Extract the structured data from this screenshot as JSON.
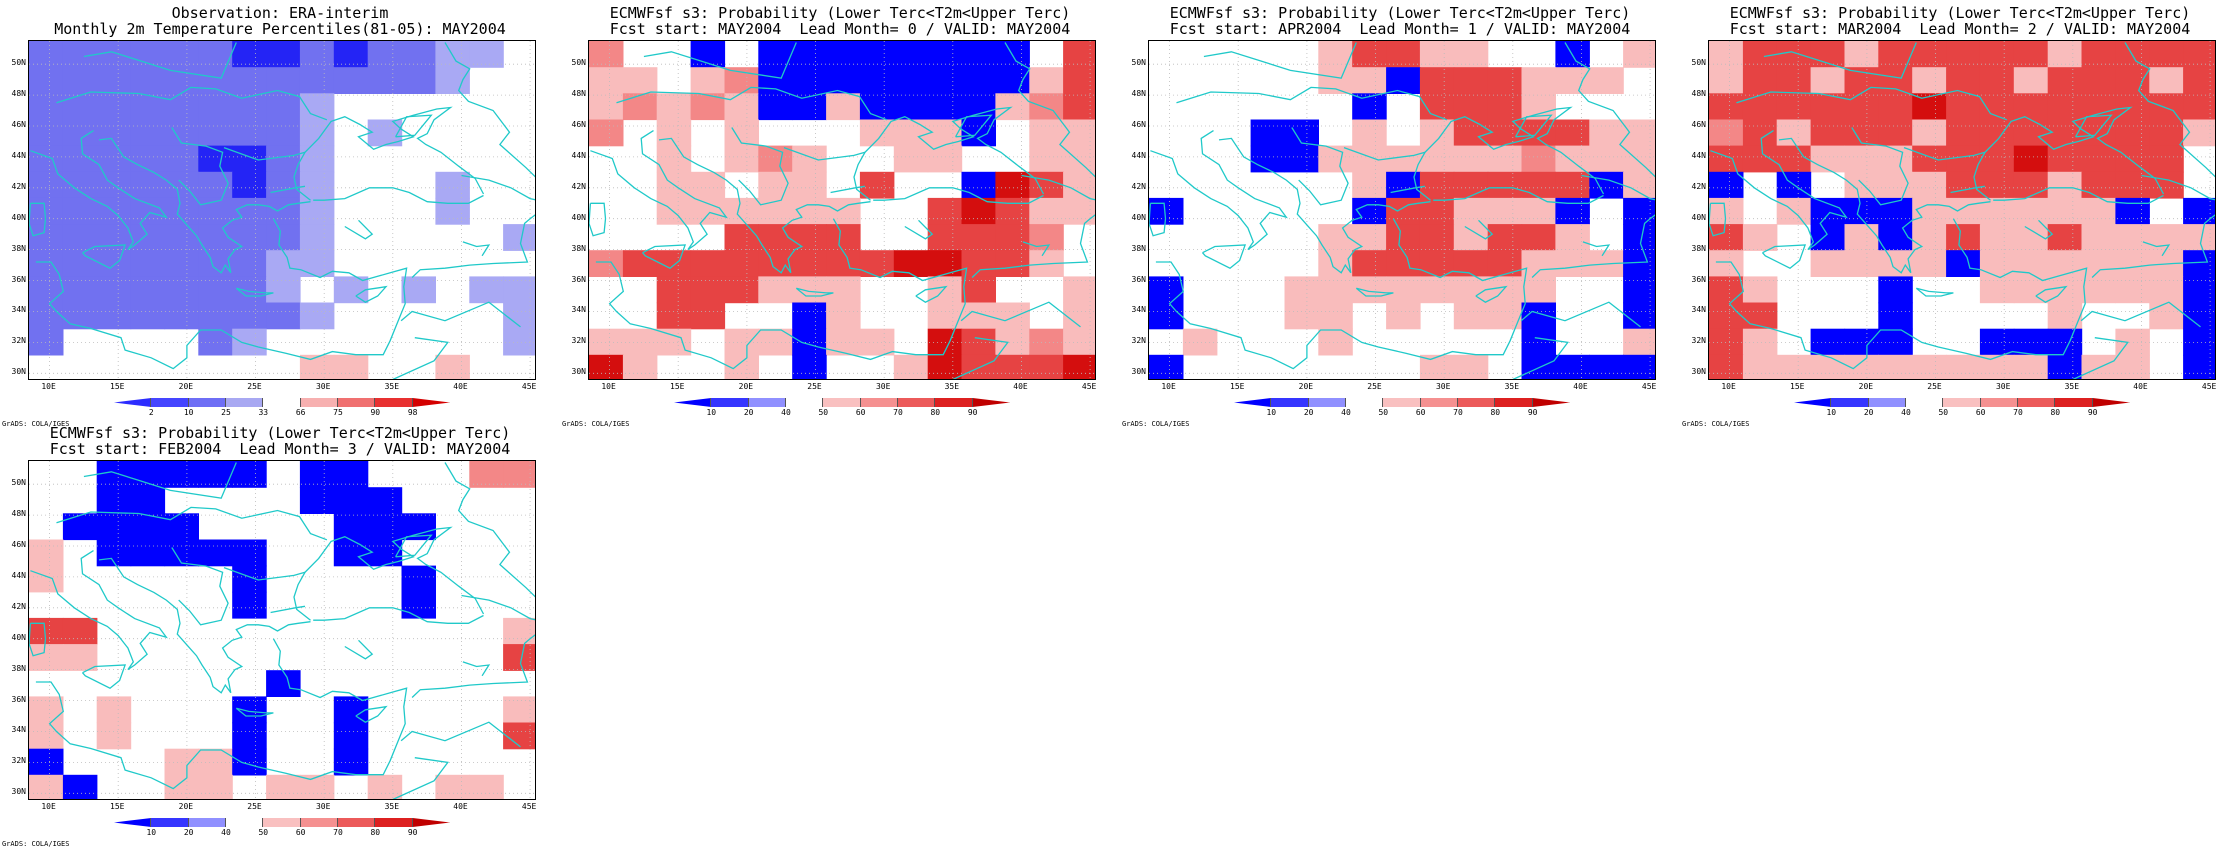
{
  "credit": "GrADS: COLA/IGES",
  "lat_labels": [
    "50N",
    "48N",
    "46N",
    "44N",
    "42N",
    "40N",
    "38N",
    "36N",
    "34N",
    "32N",
    "30N"
  ],
  "lon_labels": [
    "10E",
    "15E",
    "20E",
    "25E",
    "30E",
    "35E",
    "40E",
    "45E"
  ],
  "colorbars": {
    "obs": {
      "ticks": [
        "2",
        "10",
        "25",
        "33",
        "66",
        "75",
        "90",
        "98"
      ],
      "colors": [
        "#2c2cff",
        "#4545ff",
        "#6e6ef5",
        "#a8a8f2",
        "#ffffff",
        "#f7b0b0",
        "#f07070",
        "#e83030",
        "#d40000"
      ]
    },
    "prob": {
      "ticks": [
        "10",
        "20",
        "40",
        "50",
        "60",
        "70",
        "80",
        "90"
      ],
      "colors": [
        "#0000ff",
        "#3535ff",
        "#9090ff",
        "#ffffff",
        "#f9c0c0",
        "#f59090",
        "#ec5a5a",
        "#dd2020",
        "#c00000"
      ]
    }
  },
  "palette": {
    "b": "#2424f5",
    "B": "#0000ff",
    "p": "#7171f0",
    "l": "#a9a9f4",
    "w": "#ffffff",
    "q": "#f9bcbc",
    "r": "#f38787",
    "R": "#e64343",
    "D": "#d40e0e"
  },
  "panels": [
    {
      "id": "obs",
      "title1": "Observation: ERA-interim",
      "title2": "Monthly 2m Temperature Percentiles(81-05): MAY2004",
      "colorbar": "obs",
      "grid": [
        "ppppppbbpbppllw",
        "pppppppppppplww",
        "pppppppplwwwwww",
        "pppppppplwlwwww",
        "pppppbbplwwwwww",
        "ppppppbplwwwlww",
        "pppppppplwwwlww",
        "pppppppplwwwwwl",
        "pppppppllwwwwww",
        "ppppppplwlwlwll",
        "pppppppplwwwwwl",
        "pwwwwplwwwwwwwl",
        "wwwwwwwwqqwwqww"
      ]
    },
    {
      "id": "f0",
      "title1": "ECMWFsf s3: Probability (Lower Terc<T2m<Upper Terc)",
      "title2": "Fcst start: MAY2004  Lead Month= 0 / VALID: MAY2004",
      "colorbar": "prob",
      "grid": [
        "rwwBwBBBBBBBBwR",
        "qqwqrBBBBBBBBqR",
        "qrqrqBBqBBBBqrR",
        "rwqwqwwwqqqBwqq",
        "wwqwqrqwwqqwwqq",
        "wwqqwqqwRwwBDRq",
        "wwqqqqqqwwRDRqq",
        "wwwwRRRRwwRRRrw",
        "rRRRRRRRRDDRRqw",
        "wwRRRqqqwwqRwwq",
        "wwRRwwBqwwqqqwq",
        "qqqwqqBqqwDRqrq",
        "DqwwqwBwwqDRRRD"
      ]
    },
    {
      "id": "f1",
      "title1": "ECMWFsf s3: Probability (Lower Terc<T2m<Upper Terc)",
      "title2": "Fcst start: APR2004  Lead Month= 1 / VALID: MAY2004",
      "colorbar": "prob",
      "grid": [
        "wwwwwqRRqqwwBwq",
        "wwwwwqqBRRRqqqw",
        "wwwwwwBwRRRqwww",
        "wwwBBwqwqRRRRqq",
        "wwwBBqqqqqqrqqq",
        "wwwwwwqBRRRRRBq",
        "BwwwwwBRRqqqBwB",
        "wwwwwqqRRqRRqwB",
        "wwwwwqRRRRRqqqB",
        "BwwwqqqqqqqqwwB",
        "BwwwqqwqwqqBwwB",
        "wqwwwqwwwwwBwwq",
        "BwwwwwwwqqwBBBB"
      ]
    },
    {
      "id": "f2",
      "title1": "ECMWFsf s3: Probability (Lower Terc<T2m<Upper Terc)",
      "title2": "Fcst start: MAR2004  Lead Month= 2 / VALID: MAY2004",
      "colorbar": "prob",
      "grid": [
        "qRRRqRRRRRqRRRR",
        "qRRqRRqRRqRRRqR",
        "RRRRRRDRRRRRRRR",
        "rRqRRRqRRRRRRRq",
        "RRRqqqRRRDRRRRw",
        "BwBwqqqRRRqRRRw",
        "qwqBBBqqqqqqBwB",
        "RqwBqBqRqqRqqqq",
        "qwwqqqqBqqqqqqB",
        "RqwwwBwwqqqqqqB",
        "RRwwwBwwwwqwwqB",
        "RqwBBBwwBBBwqwB",
        "RqqqqqqqqqBqqwB"
      ]
    },
    {
      "id": "f3",
      "title1": "ECMWFsf s3: Probability (Lower Terc<T2m<Upper Terc)",
      "title2": "Fcst start: FEB2004  Lead Month= 3 / VALID: MAY2004",
      "colorbar": "prob",
      "grid": [
        "wwBBBBBwBBwwwrr",
        "wwBBwwwwBBBwwww",
        "wBBBBwwwwBBBwww",
        "qwBBBBBwwBBwwww",
        "qwwwwwBwwwwBwww",
        "wwwwwwBwwwwBwww",
        "RRwwwwwwwwwwwwq",
        "qqwwwwwwwwwwwwR",
        "wwwwwwwBwwwwwww",
        "qwqwwwBwwBwwwwq",
        "qwqwwwBwwBwwwwR",
        "BwwwqqBwwBwwwww",
        "qBwwqqwqqwqwqqw"
      ]
    }
  ]
}
